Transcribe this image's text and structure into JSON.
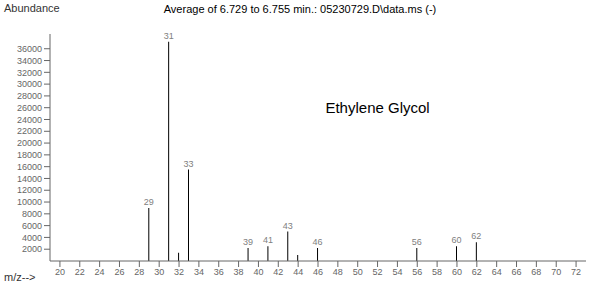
{
  "chart_data": {
    "type": "bar",
    "title": "Average of 6.729 to 6.755 min.: 05230729.D\\data.ms (-)",
    "y_label": "Abundance",
    "x_label": "m/z-->",
    "x": [
      29,
      31,
      32,
      33,
      39,
      41,
      43,
      44,
      46,
      56,
      60,
      62
    ],
    "values": [
      9000,
      37200,
      1400,
      15500,
      2200,
      2500,
      5000,
      1000,
      2200,
      2200,
      2500,
      3200
    ],
    "labels": [
      "29",
      "31",
      null,
      "33",
      "39",
      "41",
      "43",
      null,
      "46",
      "56",
      "60",
      "62"
    ],
    "annotations": [
      {
        "text": "Ethylene Glycol",
        "x": 52,
        "y": 26000
      }
    ],
    "color": "#000000",
    "xlim": [
      19,
      73
    ],
    "ylim": [
      0,
      38500
    ],
    "xticks": [
      20,
      22,
      24,
      26,
      28,
      30,
      32,
      34,
      36,
      38,
      40,
      42,
      44,
      46,
      48,
      50,
      52,
      54,
      56,
      58,
      60,
      62,
      64,
      66,
      68,
      70,
      72
    ],
    "yticks": [
      2000,
      4000,
      6000,
      8000,
      10000,
      12000,
      14000,
      16000,
      18000,
      20000,
      22000,
      24000,
      26000,
      28000,
      30000,
      32000,
      34000,
      36000
    ],
    "grid": false
  }
}
